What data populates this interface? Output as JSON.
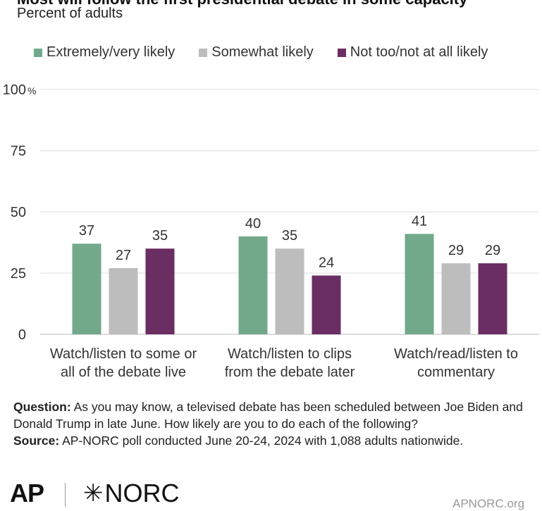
{
  "header": {
    "title": "Most will follow the first presidential debate in some capacity",
    "subtitle": "Percent of adults"
  },
  "colors": {
    "extremely": "#72a98a",
    "somewhat": "#bdbdbd",
    "not_likely": "#6a2e62",
    "grid": "#dcdcdc",
    "text": "#333333"
  },
  "chart_data": {
    "type": "bar",
    "categories": [
      [
        "Watch/listen to some or",
        "all of the debate live"
      ],
      [
        "Watch/listen to clips",
        "from the debate later"
      ],
      [
        "Watch/read/listen to",
        "commentary"
      ]
    ],
    "series": [
      {
        "name": "Extremely/very likely",
        "values": [
          37,
          40,
          41
        ]
      },
      {
        "name": "Somewhat likely",
        "values": [
          27,
          35,
          29
        ]
      },
      {
        "name": "Not too/not at all likely",
        "values": [
          35,
          24,
          29
        ]
      }
    ],
    "ylim": [
      0,
      100
    ],
    "yticks": [
      "0",
      "25",
      "50",
      "75",
      "100"
    ],
    "ytick_values": [
      0,
      25,
      50,
      75,
      100
    ],
    "y_unit": "%",
    "legend_position": "top",
    "grid": true
  },
  "notes": {
    "question_label": "Question:",
    "question_text": "As you may know, a televised debate has been scheduled between Joe Biden and Donald Trump in late June. How likely are you to do each of the following?",
    "source_label": "Source:",
    "source_text": "AP-NORC poll conducted June 20-24, 2024 with 1,088 adults nationwide."
  },
  "footer": {
    "logo_ap": "AP",
    "logo_norc": "NORC",
    "site": "APNORC.org"
  }
}
